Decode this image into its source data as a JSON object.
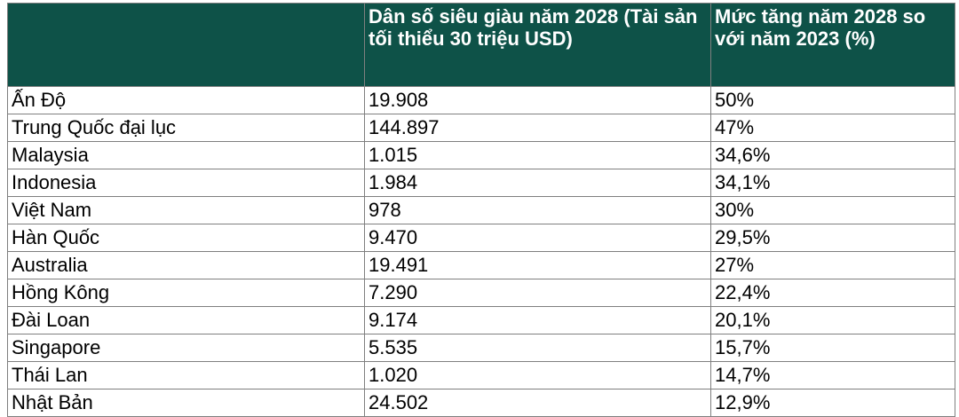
{
  "table": {
    "header": [
      "Dân số siêu giàu năm 2028 (Tài sản tối thiểu 30 triệu USD)",
      "Mức tăng năm 2028 so với năm 2023 (%)"
    ],
    "rows": [
      [
        "Ấn Độ",
        "19.908",
        "50%"
      ],
      [
        "Trung Quốc đại lục",
        "144.897",
        "47%"
      ],
      [
        "Malaysia",
        "1.015",
        "34,6%"
      ],
      [
        "Indonesia",
        "1.984",
        "34,1%"
      ],
      [
        "Việt Nam",
        "978",
        "30%"
      ],
      [
        "Hàn Quốc",
        "9.470",
        "29,5%"
      ],
      [
        "Australia",
        "19.491",
        "27%"
      ],
      [
        "Hồng Kông",
        "7.290",
        "22,4%"
      ],
      [
        "Đài Loan",
        "9.174",
        "20,1%"
      ],
      [
        "Singapore",
        "5.535",
        "15,7%"
      ],
      [
        "Thái Lan",
        "1.020",
        "14,7%"
      ],
      [
        "Nhật Bản",
        "24.502",
        "12,9%"
      ]
    ]
  }
}
